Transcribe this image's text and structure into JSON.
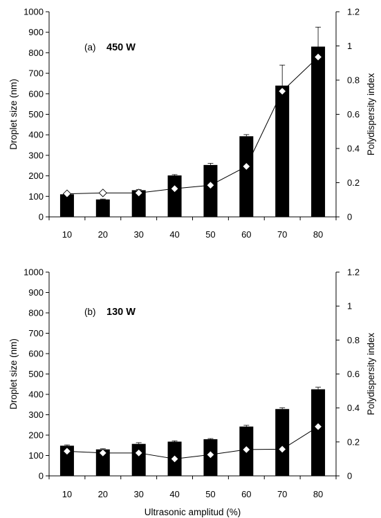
{
  "chart_data": [
    {
      "type": "bar",
      "tag": "(a)",
      "title": "450 W",
      "categories": [
        "10",
        "20",
        "30",
        "40",
        "50",
        "60",
        "70",
        "80"
      ],
      "series": [
        {
          "axis": "left",
          "type": "bar",
          "values": [
            110,
            85,
            130,
            202,
            253,
            393,
            640,
            830
          ],
          "errors": [
            3,
            2,
            3,
            4,
            8,
            8,
            100,
            95
          ],
          "color": "#000000"
        },
        {
          "axis": "right",
          "type": "line",
          "values": [
            0.135,
            0.14,
            0.14,
            0.165,
            0.185,
            0.295,
            0.735,
            0.935
          ],
          "marker": "diamond",
          "markerFill": [
            "#ffffff",
            "#ffffff",
            "#ffffff",
            "#ffffff",
            "#ffffff",
            "#ffffff",
            "#ffffff",
            "#ffffff"
          ],
          "color": "#000000"
        }
      ],
      "ylabel": "Droplet size (nm)",
      "y2label": "Polydispersity index",
      "xlabel": "",
      "ylim": [
        0,
        1000
      ],
      "y2lim": [
        0,
        1.2
      ],
      "yticks": [
        "0",
        "100",
        "200",
        "300",
        "400",
        "500",
        "600",
        "700",
        "800",
        "900",
        "1000"
      ],
      "y2ticks": [
        "0",
        "0.2",
        "0.4",
        "0.6",
        "0.8",
        "1",
        "1.2"
      ],
      "grid": false
    },
    {
      "type": "bar",
      "tag": "(b)",
      "title": "130 W",
      "categories": [
        "10",
        "20",
        "30",
        "40",
        "50",
        "60",
        "70",
        "80"
      ],
      "series": [
        {
          "axis": "left",
          "type": "bar",
          "values": [
            148,
            130,
            157,
            168,
            180,
            242,
            328,
            425
          ],
          "errors": [
            4,
            3,
            6,
            4,
            3,
            6,
            6,
            10
          ],
          "color": "#000000"
        },
        {
          "axis": "right",
          "type": "line",
          "values": [
            0.145,
            0.135,
            0.135,
            0.1,
            0.125,
            0.155,
            0.157,
            0.29
          ],
          "marker": "diamond",
          "markerFill": [
            "#ffffff",
            "#ffffff",
            "#ffffff",
            "#ffffff",
            "#ffffff",
            "#ffffff",
            "#ffffff",
            "#ffffff"
          ],
          "color": "#000000"
        }
      ],
      "ylabel": "Droplet size (nm)",
      "y2label": "Polydispersity index",
      "xlabel": "Ultrasonic amplitud (%)",
      "ylim": [
        0,
        1000
      ],
      "y2lim": [
        0,
        1.2
      ],
      "yticks": [
        "0",
        "100",
        "200",
        "300",
        "400",
        "500",
        "600",
        "700",
        "800",
        "900",
        "1000"
      ],
      "y2ticks": [
        "0",
        "0.2",
        "0.4",
        "0.6",
        "0.8",
        "1",
        "1.2"
      ],
      "grid": false
    }
  ]
}
